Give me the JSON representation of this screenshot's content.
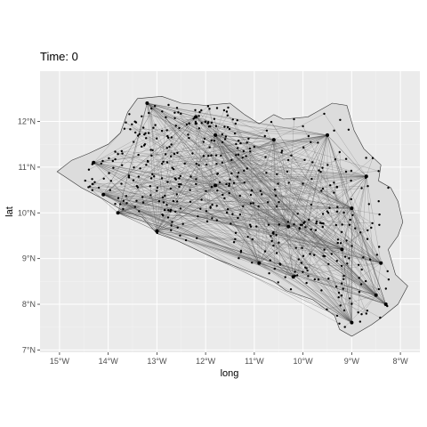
{
  "chart_data": {
    "type": "scatter",
    "title": "Time: 0",
    "xlabel": "long",
    "ylabel": "lat",
    "xlim": [
      -15.4,
      -7.6
    ],
    "ylim": [
      6.95,
      13.1
    ],
    "x_ticks": [
      {
        "value": -15,
        "label": "15°W"
      },
      {
        "value": -14,
        "label": "14°W"
      },
      {
        "value": -13,
        "label": "13°W"
      },
      {
        "value": -12,
        "label": "12°W"
      },
      {
        "value": -11,
        "label": "11°W"
      },
      {
        "value": -10,
        "label": "10°W"
      },
      {
        "value": -9,
        "label": "9°W"
      },
      {
        "value": -8,
        "label": "8°W"
      }
    ],
    "y_ticks": [
      {
        "value": 7,
        "label": "7°N"
      },
      {
        "value": 8,
        "label": "8°N"
      },
      {
        "value": 9,
        "label": "9°N"
      },
      {
        "value": 10,
        "label": "10°N"
      },
      {
        "value": 11,
        "label": "11°N"
      },
      {
        "value": 12,
        "label": "12°N"
      }
    ],
    "grid": true,
    "colors": {
      "panel": "#ebebeb",
      "grid_major": "#ffffff",
      "grid_minor": "#f3f3f3",
      "map_fill": "#dcdcdc",
      "map_border": "#333333",
      "edges": "#555555",
      "nodes": "#000000"
    },
    "map_outline": [
      [
        -15.05,
        10.9
      ],
      [
        -14.75,
        11.15
      ],
      [
        -14.4,
        11.3
      ],
      [
        -14.0,
        11.5
      ],
      [
        -13.75,
        11.75
      ],
      [
        -13.6,
        12.2
      ],
      [
        -13.4,
        12.5
      ],
      [
        -12.9,
        12.55
      ],
      [
        -12.5,
        12.4
      ],
      [
        -12.0,
        12.35
      ],
      [
        -11.5,
        12.4
      ],
      [
        -11.2,
        12.15
      ],
      [
        -10.9,
        11.95
      ],
      [
        -10.6,
        12.15
      ],
      [
        -10.4,
        12.05
      ],
      [
        -9.9,
        12.1
      ],
      [
        -9.4,
        12.4
      ],
      [
        -9.1,
        12.35
      ],
      [
        -8.95,
        11.8
      ],
      [
        -8.75,
        11.4
      ],
      [
        -8.4,
        11.05
      ],
      [
        -8.45,
        10.7
      ],
      [
        -8.2,
        10.55
      ],
      [
        -8.05,
        10.25
      ],
      [
        -7.95,
        9.8
      ],
      [
        -8.05,
        9.5
      ],
      [
        -8.25,
        9.2
      ],
      [
        -8.1,
        8.65
      ],
      [
        -7.85,
        8.4
      ],
      [
        -8.05,
        8.0
      ],
      [
        -8.4,
        7.7
      ],
      [
        -8.6,
        7.55
      ],
      [
        -9.0,
        7.3
      ],
      [
        -9.25,
        7.45
      ],
      [
        -9.35,
        7.75
      ],
      [
        -9.8,
        8.1
      ],
      [
        -10.35,
        8.3
      ],
      [
        -10.6,
        8.5
      ],
      [
        -11.8,
        9.0
      ],
      [
        -12.6,
        9.4
      ],
      [
        -13.0,
        9.55
      ],
      [
        -13.3,
        9.9
      ],
      [
        -13.7,
        10.05
      ],
      [
        -14.1,
        10.3
      ],
      [
        -14.55,
        10.55
      ],
      [
        -14.9,
        10.8
      ]
    ],
    "hubs": [
      {
        "x": -13.2,
        "y": 12.4
      },
      {
        "x": -12.2,
        "y": 12.1
      },
      {
        "x": -11.8,
        "y": 11.7
      },
      {
        "x": -10.6,
        "y": 11.6
      },
      {
        "x": -9.5,
        "y": 11.7
      },
      {
        "x": -8.7,
        "y": 10.8
      },
      {
        "x": -9.0,
        "y": 10.1
      },
      {
        "x": -14.3,
        "y": 11.1
      },
      {
        "x": -14.1,
        "y": 10.4
      },
      {
        "x": -13.8,
        "y": 10.0
      },
      {
        "x": -13.0,
        "y": 9.6
      },
      {
        "x": -11.8,
        "y": 10.6
      },
      {
        "x": -10.3,
        "y": 9.7
      },
      {
        "x": -10.2,
        "y": 8.6
      },
      {
        "x": -9.2,
        "y": 9.2
      },
      {
        "x": -8.4,
        "y": 8.9
      },
      {
        "x": -8.5,
        "y": 8.2
      },
      {
        "x": -8.3,
        "y": 8.0
      },
      {
        "x": -9.0,
        "y": 7.6
      },
      {
        "x": -10.9,
        "y": 8.9
      }
    ],
    "node_count": 480,
    "edge_count": 650
  }
}
